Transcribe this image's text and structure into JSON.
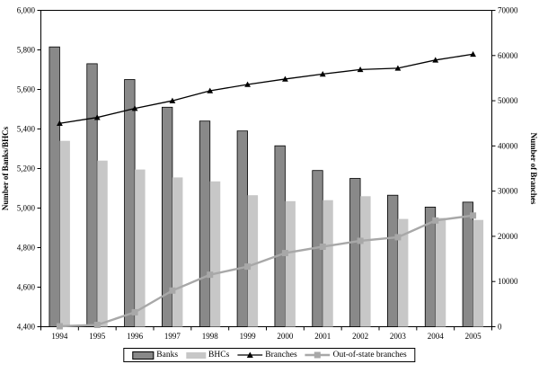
{
  "chart_data": {
    "type": "bar",
    "subtype": "combo-bar-line-dual-axis",
    "categories": [
      "1994",
      "1995",
      "1996",
      "1997",
      "1998",
      "1999",
      "2000",
      "2001",
      "2002",
      "2003",
      "2004",
      "2005"
    ],
    "bar_series": [
      {
        "name": "Banks",
        "axis": "left",
        "color": "#898989",
        "stroke": "#000000",
        "values": [
          5815,
          5730,
          5650,
          5510,
          5440,
          5390,
          5315,
          5190,
          5150,
          5065,
          5005,
          5030
        ]
      },
      {
        "name": "BHCs",
        "axis": "left",
        "color": "#C7C7C7",
        "stroke": "none",
        "values": [
          5340,
          5240,
          5195,
          5155,
          5135,
          5065,
          5035,
          5040,
          5060,
          4945,
          4950,
          4940
        ]
      }
    ],
    "line_series": [
      {
        "name": "Branches",
        "axis": "right",
        "color": "#000000",
        "line_width": 1.3,
        "marker": "triangle",
        "marker_color": "#000000",
        "values": [
          45000,
          46300,
          48300,
          50000,
          52200,
          53600,
          54800,
          55900,
          56900,
          57200,
          59000,
          60300
        ]
      },
      {
        "name": "Out-of-state branches",
        "axis": "right",
        "color": "#A8A8A8",
        "line_width": 2.4,
        "marker": "square",
        "marker_color": "#A8A8A8",
        "values": [
          100,
          400,
          3200,
          8000,
          11500,
          13300,
          16300,
          17700,
          19000,
          19800,
          23500,
          24600
        ]
      }
    ],
    "left_axis": {
      "title": "Number of Banks/BHCs",
      "min": 4400,
      "max": 6000,
      "step": 200,
      "tick_labels": [
        "4,400",
        "4,600",
        "4,800",
        "5,000",
        "5,200",
        "5,400",
        "5,600",
        "5,800",
        "6,000"
      ]
    },
    "right_axis": {
      "title": "Number of Branches",
      "min": 0,
      "max": 70000,
      "step": 10000,
      "tick_labels": [
        "0",
        "10000",
        "20000",
        "30000",
        "40000",
        "50000",
        "60000",
        "70000"
      ]
    },
    "grid": false,
    "legend_position": "bottom-center",
    "plot_border": "#000000",
    "background": "#ffffff"
  }
}
